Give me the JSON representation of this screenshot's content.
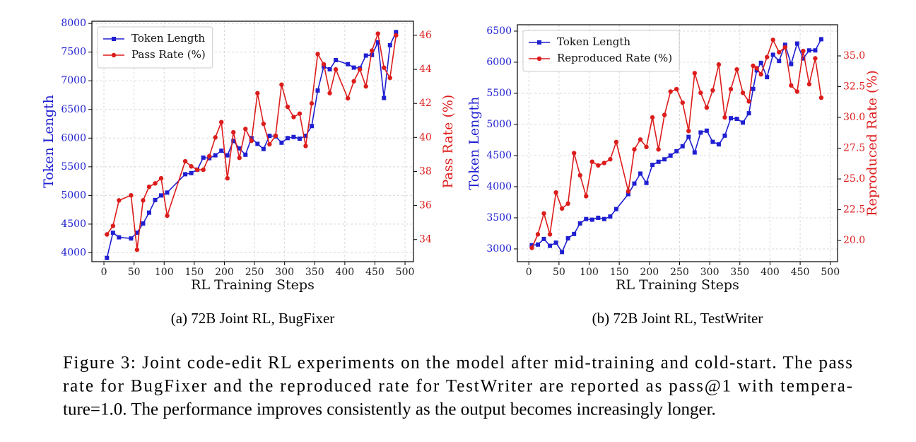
{
  "chart_data": [
    {
      "type": "line",
      "xlabel": "RL Training Steps",
      "ylabel": "Token Length",
      "y2label": "Pass Rate (%)",
      "subcaption": "(a) 72B Joint RL, BugFixer",
      "x": [
        5,
        15,
        25,
        45,
        55,
        65,
        75,
        85,
        95,
        105,
        135,
        145,
        155,
        165,
        175,
        185,
        195,
        205,
        215,
        225,
        235,
        245,
        255,
        265,
        275,
        285,
        295,
        305,
        315,
        325,
        335,
        345,
        355,
        365,
        375,
        385,
        405,
        415,
        425,
        435,
        445,
        455,
        465,
        475,
        485
      ],
      "series": [
        {
          "name": "Token Length",
          "color": "#1f1fd1",
          "marker": "square",
          "values": [
            3910,
            4350,
            4270,
            4250,
            4350,
            4510,
            4700,
            4920,
            5000,
            5050,
            5370,
            5390,
            5450,
            5660,
            5650,
            5700,
            5780,
            5700,
            5950,
            5820,
            5710,
            6000,
            5900,
            5810,
            6040,
            6030,
            5920,
            6000,
            6020,
            5990,
            6040,
            6210,
            6830,
            7250,
            7200,
            7360,
            7290,
            7230,
            7220,
            7440,
            7450,
            7670,
            6700,
            7620,
            7850
          ]
        },
        {
          "name": "Pass Rate (%)",
          "color": "#dd1c1c",
          "marker": "circle",
          "axis": "y2",
          "values": [
            34.3,
            34.8,
            36.3,
            36.6,
            33.4,
            36.3,
            37.1,
            37.3,
            37.6,
            35.4,
            38.6,
            38.3,
            38.1,
            38.1,
            38.9,
            40.0,
            40.9,
            37.6,
            40.3,
            38.8,
            40.5,
            39.8,
            42.6,
            40.8,
            39.6,
            40.1,
            43.1,
            41.8,
            41.2,
            41.4,
            39.5,
            42.0,
            44.9,
            44.3,
            42.6,
            44.0,
            42.3,
            43.3,
            44.0,
            43.0,
            45.1,
            46.1,
            44.1,
            43.5,
            46.0
          ]
        }
      ],
      "xlim": [
        -20,
        514
      ],
      "xticks": [
        0,
        50,
        100,
        150,
        200,
        250,
        300,
        350,
        400,
        450,
        500
      ],
      "ylim": [
        3845,
        8039
      ],
      "yticks": [
        4000,
        4500,
        5000,
        5500,
        6000,
        6500,
        7000,
        7500,
        8000
      ],
      "y2lim": [
        32.7,
        46.83
      ],
      "y2ticks": [
        34,
        36,
        38,
        40,
        42,
        44,
        46
      ],
      "grid": true,
      "legend": "upper left"
    },
    {
      "type": "line",
      "xlabel": "RL Training Steps",
      "ylabel": "Token Length",
      "y2label": "Reproduced Rate (%)",
      "subcaption": "(b) 72B Joint RL, TestWriter",
      "x": [
        5,
        15,
        25,
        35,
        45,
        55,
        65,
        75,
        85,
        95,
        105,
        115,
        125,
        135,
        145,
        165,
        175,
        185,
        195,
        205,
        215,
        225,
        235,
        245,
        255,
        265,
        275,
        285,
        295,
        305,
        315,
        325,
        335,
        345,
        355,
        365,
        372,
        378,
        385,
        395,
        405,
        415,
        425,
        435,
        445,
        455,
        465,
        475,
        485
      ],
      "series": [
        {
          "name": "Token Length",
          "color": "#1f1fd1",
          "marker": "square",
          "values": [
            3060,
            3070,
            3160,
            3050,
            3100,
            2950,
            3170,
            3240,
            3410,
            3480,
            3470,
            3500,
            3480,
            3520,
            3640,
            3880,
            4050,
            4210,
            4060,
            4350,
            4400,
            4440,
            4500,
            4570,
            4650,
            4800,
            4550,
            4870,
            4900,
            4720,
            4680,
            4820,
            5100,
            5090,
            5030,
            5180,
            5570,
            5870,
            5990,
            5760,
            6120,
            6020,
            6280,
            5970,
            6300,
            6060,
            6190,
            6190,
            6370
          ]
        },
        {
          "name": "Reproduced Rate (%)",
          "color": "#dd1c1c",
          "marker": "circle",
          "axis": "y2",
          "values": [
            19.4,
            20.5,
            22.2,
            20.5,
            23.9,
            22.6,
            23.0,
            27.1,
            25.3,
            23.6,
            26.4,
            26.1,
            26.3,
            26.6,
            28.0,
            24.0,
            27.4,
            28.2,
            27.6,
            30.0,
            27.4,
            30.2,
            32.1,
            32.3,
            31.2,
            28.9,
            33.6,
            32.0,
            30.8,
            32.2,
            34.3,
            30.0,
            32.3,
            33.9,
            32.0,
            31.3,
            34.2,
            34.0,
            33.5,
            34.9,
            36.3,
            35.3,
            35.7,
            32.6,
            32.1,
            35.4,
            32.7,
            34.8,
            31.6
          ]
        }
      ],
      "xlim": [
        -19,
        512
      ],
      "xticks": [
        0,
        50,
        100,
        150,
        200,
        250,
        300,
        350,
        400,
        450,
        500
      ],
      "ylim": [
        2795,
        6602
      ],
      "yticks": [
        3000,
        3500,
        4000,
        4500,
        5000,
        5500,
        6000,
        6500
      ],
      "y2lim": [
        18.28,
        37.53
      ],
      "y2ticks": [
        {
          "value": 20,
          "label": "20.0"
        },
        22.5,
        {
          "value": 25,
          "label": "25.0"
        },
        27.5,
        {
          "value": 30,
          "label": "30.0"
        },
        32.5,
        {
          "value": 35,
          "label": "35.0"
        }
      ],
      "grid": true,
      "legend": "upper left"
    }
  ],
  "caption_lines": [
    "Figure 3: Joint code-edit RL experiments on the model after mid-training and cold-start. The pass",
    "rate for BugFixer and the reproduced rate for TestWriter are reported as pass@1 with tempera-",
    "ture=1.0. The performance improves consistently as the output becomes increasingly longer."
  ]
}
